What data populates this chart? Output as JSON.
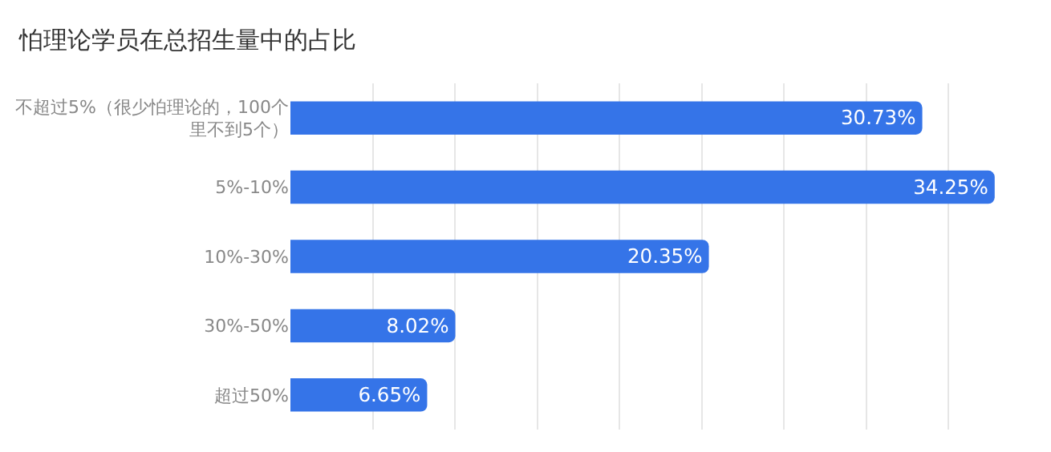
{
  "chart_data": {
    "type": "bar",
    "orientation": "horizontal",
    "title": "怕理论学员在总招生量中的占比",
    "categories": [
      "不超过5%（很少怕理论的，100个里不到5个）",
      "5%-10%",
      "10%-30%",
      "30%-50%",
      "超过50%"
    ],
    "values": [
      30.73,
      34.25,
      20.35,
      8.02,
      6.65
    ],
    "value_labels": [
      "30.73%",
      "34.25%",
      "20.35%",
      "8.02%",
      "6.65%"
    ],
    "color": "#3574e8",
    "grid": "x",
    "tick_labels": "y"
  }
}
